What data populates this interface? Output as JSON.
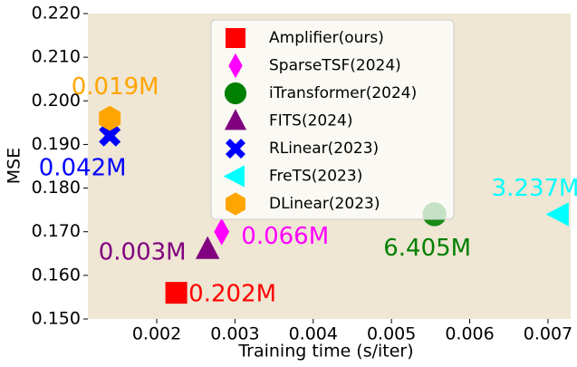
{
  "chart_data": {
    "type": "scatter",
    "x_label": "Training time (s/iter)",
    "y_label": "MSE",
    "xlim": [
      0.00112,
      0.00729
    ],
    "ylim": [
      0.15,
      0.22
    ],
    "xticks": [
      0.002,
      0.003,
      0.004,
      0.005,
      0.006,
      0.007
    ],
    "yticks": [
      {
        "value": 0.15,
        "label": "0.150"
      },
      {
        "value": 0.16,
        "label": "0.160"
      },
      {
        "value": 0.17,
        "label": "0.170"
      },
      {
        "value": 0.18,
        "label": "0.180"
      },
      {
        "value": 0.19,
        "label": "0.190"
      },
      {
        "value": 0.2,
        "label": "0.200"
      },
      {
        "value": 0.21,
        "label": "0.210"
      },
      {
        "value": 0.22,
        "label": "0.220"
      }
    ],
    "legend": "upper center",
    "background": "#efe6d3",
    "series": [
      {
        "name": "Amplifier(ours)",
        "color": "#ff0000",
        "marker": "square",
        "x": [
          0.00225
        ],
        "values": [
          0.156
        ],
        "label": "0.202M"
      },
      {
        "name": "SparseTSF(2024)",
        "color": "#ff00ff",
        "marker": "diamond",
        "x": [
          0.00283
        ],
        "values": [
          0.17
        ],
        "label": "0.066M"
      },
      {
        "name": "iTransformer(2024)",
        "color": "#008000",
        "marker": "circle",
        "x": [
          0.00555
        ],
        "values": [
          0.174
        ],
        "label": "6.405M"
      },
      {
        "name": "FITS(2024)",
        "color": "#800080",
        "marker": "triangle",
        "x": [
          0.00265
        ],
        "values": [
          0.166
        ],
        "label": "0.003M"
      },
      {
        "name": "RLinear(2023)",
        "color": "#0000ff",
        "marker": "x",
        "x": [
          0.0014
        ],
        "values": [
          0.192
        ],
        "label": "0.042M"
      },
      {
        "name": "FreTS(2023)",
        "color": "#00ffff",
        "marker": "triangle-left",
        "x": [
          0.00714
        ],
        "values": [
          0.174
        ],
        "label": "3.237M"
      },
      {
        "name": "DLinear(2023)",
        "color": "#ffa500",
        "marker": "hexagon",
        "x": [
          0.0014
        ],
        "values": [
          0.196
        ],
        "label": "0.019M"
      }
    ]
  }
}
